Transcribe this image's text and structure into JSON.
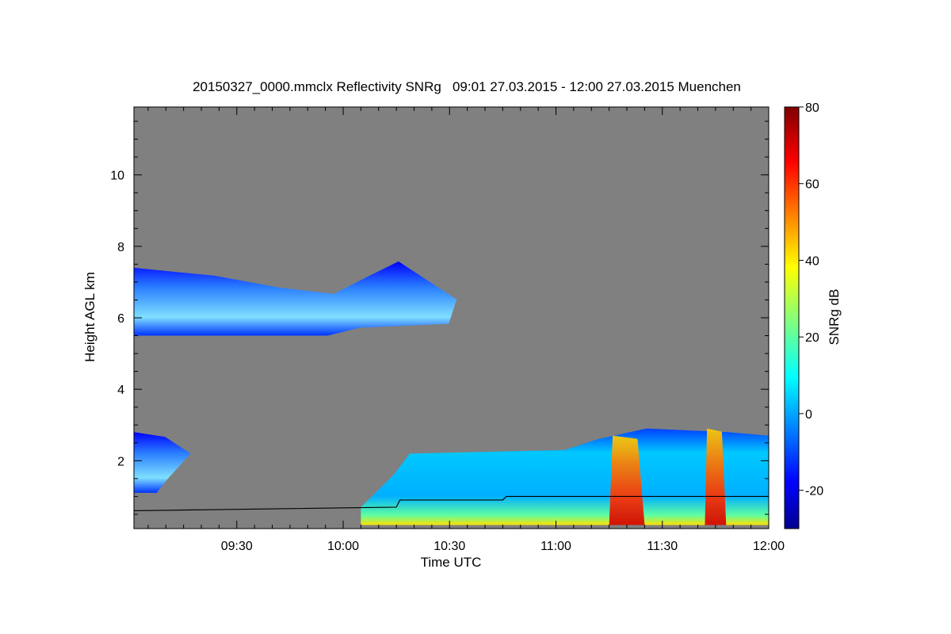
{
  "chart_data": {
    "type": "heatmap",
    "title": "20150327_0000.mmclx Reflectivity SNRg   09:01 27.03.2015 - 12:00 27.03.2015 Muenchen",
    "xlabel": "Time UTC",
    "ylabel": "Height AGL km",
    "x_range": [
      "09:01",
      "12:00"
    ],
    "x_ticks": [
      "09:30",
      "10:00",
      "10:30",
      "11:00",
      "11:30",
      "12:00"
    ],
    "ylim": [
      0.1,
      11.9
    ],
    "y_ticks": [
      2,
      4,
      6,
      8,
      10
    ],
    "colorbar": {
      "label": "SNRg dB",
      "range": [
        -30,
        80
      ],
      "ticks": [
        -20,
        0,
        20,
        40,
        60,
        80
      ],
      "colormap": "jet"
    },
    "background_color": "#808080",
    "features": [
      {
        "name": "upper cloud layer",
        "time_start": "09:01",
        "time_end": "10:32",
        "base_km": 5.5,
        "top_km": 7.4,
        "snr_db": [
          -25,
          8
        ]
      },
      {
        "name": "low cloud fragment",
        "time_start": "09:01",
        "time_end": "09:17",
        "base_km": 1.1,
        "top_km": 2.8,
        "snr_db": [
          -10,
          10
        ]
      },
      {
        "name": "boundary layer",
        "time_start": "10:05",
        "time_end": "12:00",
        "base_km": 0.2,
        "top_km": 2.9,
        "snr_db": [
          -15,
          70
        ]
      },
      {
        "name": "strong echo column",
        "time_start": "11:15",
        "time_end": "11:25",
        "base_km": 0.2,
        "top_km": 2.7,
        "snr_db": [
          40,
          78
        ]
      },
      {
        "name": "strong echo column",
        "time_start": "11:42",
        "time_end": "11:48",
        "base_km": 0.2,
        "top_km": 2.9,
        "snr_db": [
          40,
          78
        ]
      }
    ],
    "boundary_line_km": [
      {
        "time": "09:01",
        "height_km": 0.6
      },
      {
        "time": "10:15",
        "height_km": 0.7
      },
      {
        "time": "10:16",
        "height_km": 0.9
      },
      {
        "time": "10:45",
        "height_km": 0.9
      },
      {
        "time": "10:46",
        "height_km": 1.0
      },
      {
        "time": "12:00",
        "height_km": 1.0
      }
    ]
  }
}
